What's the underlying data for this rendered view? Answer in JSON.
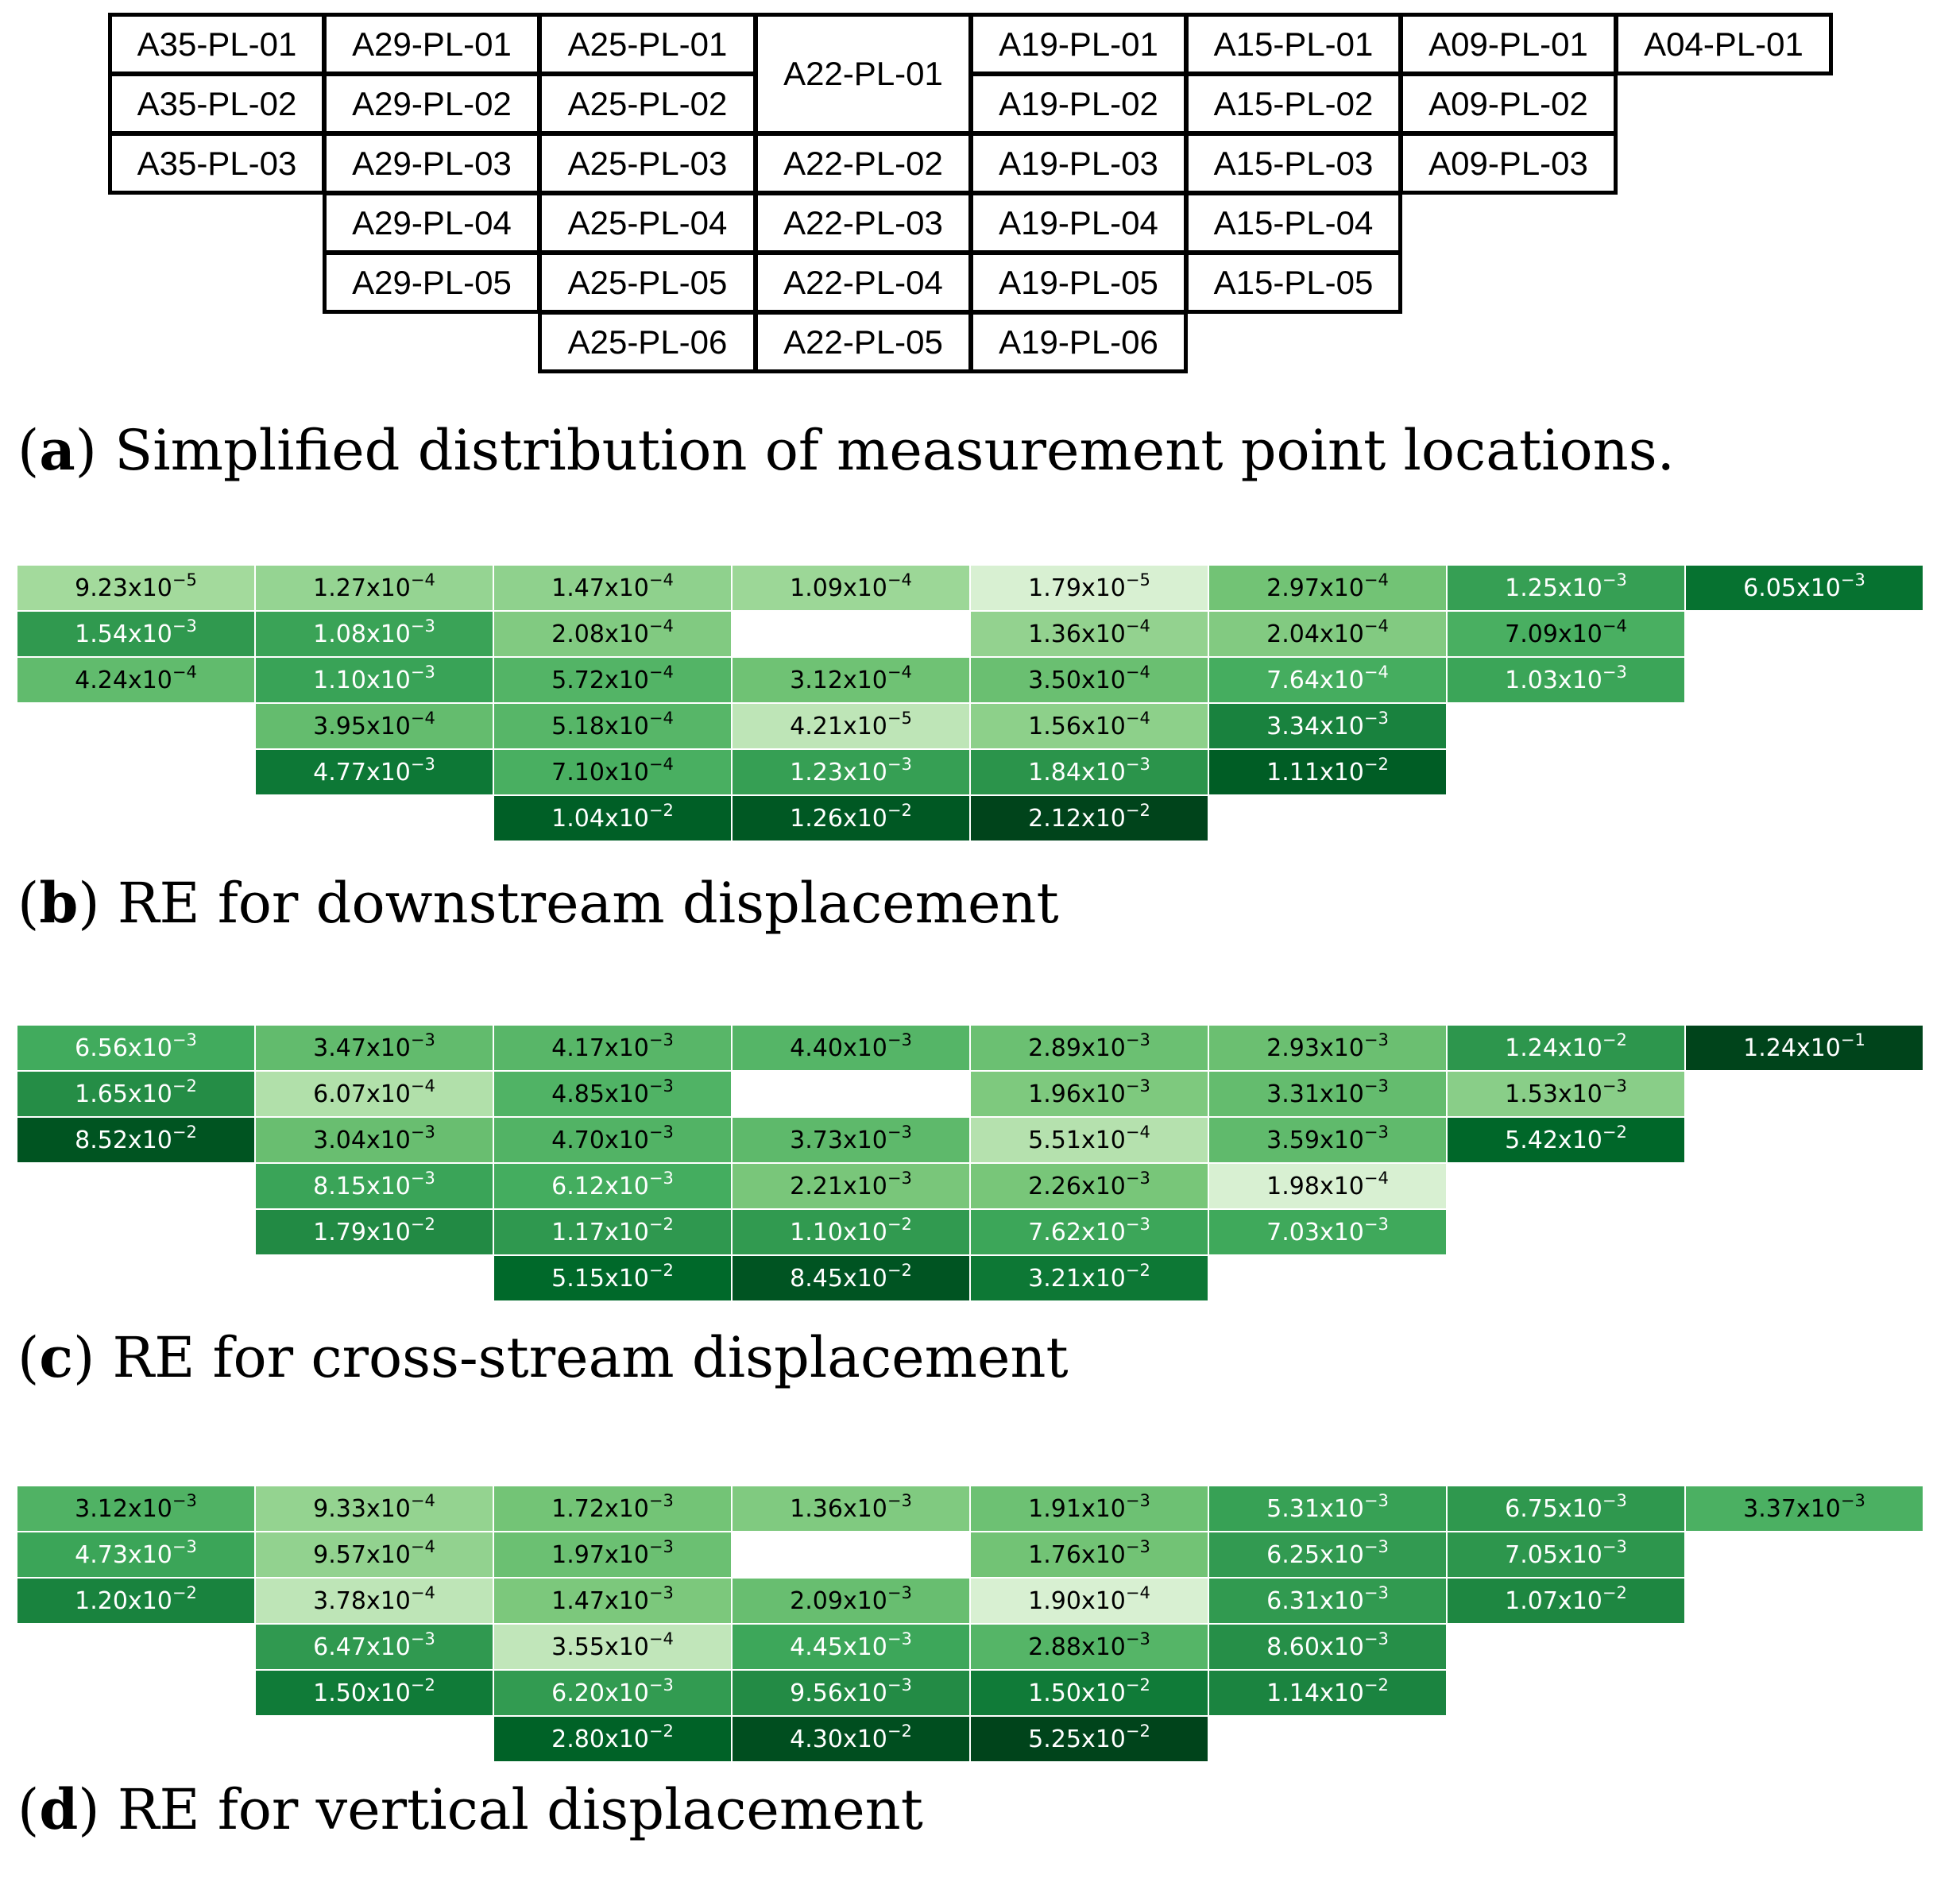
{
  "figure": {
    "locations": {
      "columns": [
        [
          "A35-PL-01",
          "A35-PL-02",
          "A35-PL-03"
        ],
        [
          "A29-PL-01",
          "A29-PL-02",
          "A29-PL-03",
          "A29-PL-04",
          "A29-PL-05"
        ],
        [
          "A25-PL-01",
          "A25-PL-02",
          "A25-PL-03",
          "A25-PL-04",
          "A25-PL-05",
          "A25-PL-06"
        ],
        [
          "A22-PL-01",
          "A22-PL-02",
          "A22-PL-03",
          "A22-PL-04",
          "A22-PL-05"
        ],
        [
          "A19-PL-01",
          "A19-PL-02",
          "A19-PL-03",
          "A19-PL-04",
          "A19-PL-05",
          "A19-PL-06"
        ],
        [
          "A15-PL-01",
          "A15-PL-02",
          "A15-PL-03",
          "A15-PL-04",
          "A15-PL-05"
        ],
        [
          "A09-PL-01",
          "A09-PL-02",
          "A09-PL-03"
        ],
        [
          "A04-PL-01"
        ]
      ]
    },
    "captions": {
      "a": {
        "letter": "a",
        "text": " Simplified distribution of measurement point locations."
      },
      "b": {
        "letter": "b",
        "text": " RE for downstream displacement"
      },
      "c": {
        "letter": "c",
        "text": " RE for cross-stream displacement"
      },
      "d": {
        "letter": "d",
        "text": " RE for vertical displacement"
      }
    }
  },
  "chart_data": [
    {
      "type": "heatmap",
      "colormap": "Greens",
      "scale": "log",
      "columns": [
        [
          9.23e-05,
          0.00154,
          0.000424,
          null,
          null,
          null
        ],
        [
          0.000127,
          0.00108,
          0.0011,
          0.000395,
          0.00477,
          null
        ],
        [
          0.000147,
          0.000208,
          0.000572,
          0.000518,
          0.00071,
          0.0104
        ],
        [
          0.000109,
          null,
          0.000312,
          4.21e-05,
          0.00123,
          0.0126
        ],
        [
          1.79e-05,
          0.000136,
          0.00035,
          0.000156,
          0.00184,
          0.0212
        ],
        [
          0.000297,
          0.000204,
          0.000764,
          0.00334,
          0.0111,
          null
        ],
        [
          0.00125,
          0.000709,
          0.00103,
          null,
          null,
          null
        ],
        [
          0.00605,
          null,
          null,
          null,
          null,
          null
        ]
      ]
    },
    {
      "type": "heatmap",
      "colormap": "Greens",
      "scale": "log",
      "columns": [
        [
          0.00656,
          0.0165,
          0.0852,
          null,
          null,
          null
        ],
        [
          0.00347,
          0.000607,
          0.00304,
          0.00815,
          0.0179,
          null
        ],
        [
          0.00417,
          0.00485,
          0.0047,
          0.00612,
          0.0117,
          0.0515
        ],
        [
          0.0044,
          null,
          0.00373,
          0.00221,
          0.011,
          0.0845
        ],
        [
          0.00289,
          0.00196,
          0.000551,
          0.00226,
          0.00762,
          0.0321
        ],
        [
          0.00293,
          0.00331,
          0.00359,
          0.000198,
          0.00703,
          null
        ],
        [
          0.0124,
          0.00153,
          0.0542,
          null,
          null,
          null
        ],
        [
          0.124,
          null,
          null,
          null,
          null,
          null
        ]
      ]
    },
    {
      "type": "heatmap",
      "colormap": "Greens",
      "scale": "log",
      "columns": [
        [
          0.00312,
          0.00473,
          0.012,
          null,
          null,
          null
        ],
        [
          0.000933,
          0.000957,
          0.000378,
          0.00647,
          0.015,
          null
        ],
        [
          0.00172,
          0.00197,
          0.00147,
          0.000355,
          0.0062,
          0.028
        ],
        [
          0.00136,
          null,
          0.00209,
          0.00445,
          0.00956,
          0.043
        ],
        [
          0.00191,
          0.00176,
          0.00019,
          0.00288,
          0.015,
          0.0525
        ],
        [
          0.00531,
          0.00625,
          0.00631,
          0.0086,
          0.0114,
          null
        ],
        [
          0.00675,
          0.00705,
          0.0107,
          null,
          null,
          null
        ],
        [
          0.00337,
          null,
          null,
          null,
          null,
          null
        ]
      ]
    }
  ]
}
